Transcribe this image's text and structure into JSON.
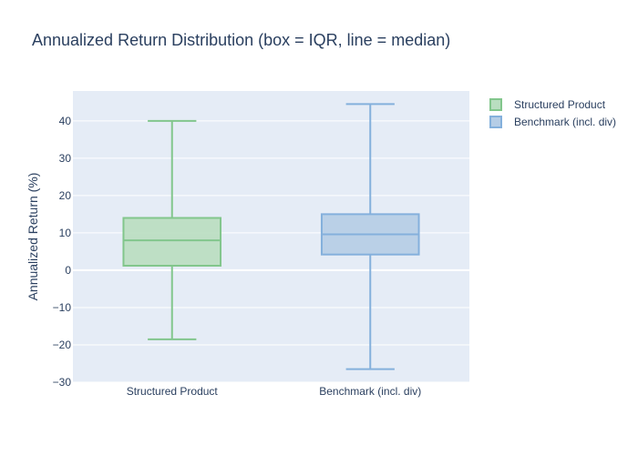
{
  "chart_data": {
    "type": "box",
    "title": "Annualized Return Distribution (box = IQR, line = median)",
    "ylabel": "Annualized Return (%)",
    "xlabel": "",
    "ylim": [
      -30,
      48
    ],
    "yticks": [
      -30,
      -20,
      -10,
      0,
      10,
      20,
      30,
      40
    ],
    "ytick_labels": [
      "−30",
      "−20",
      "−10",
      "0",
      "10",
      "20",
      "30",
      "40"
    ],
    "grid": true,
    "legend_position": "top-right",
    "categories": [
      "Structured Product",
      "Benchmark (incl. div)"
    ],
    "series": [
      {
        "name": "Structured Product",
        "color": "#82c68c",
        "fill": "#b9dec0",
        "min": -18.5,
        "q1": 1.2,
        "median": 8.0,
        "q3": 14.0,
        "max": 40.0
      },
      {
        "name": "Benchmark (incl. div)",
        "color": "#84b0dc",
        "fill": "#b5cde6",
        "min": -26.5,
        "q1": 4.2,
        "median": 9.6,
        "q3": 15.0,
        "max": 44.5
      }
    ]
  }
}
